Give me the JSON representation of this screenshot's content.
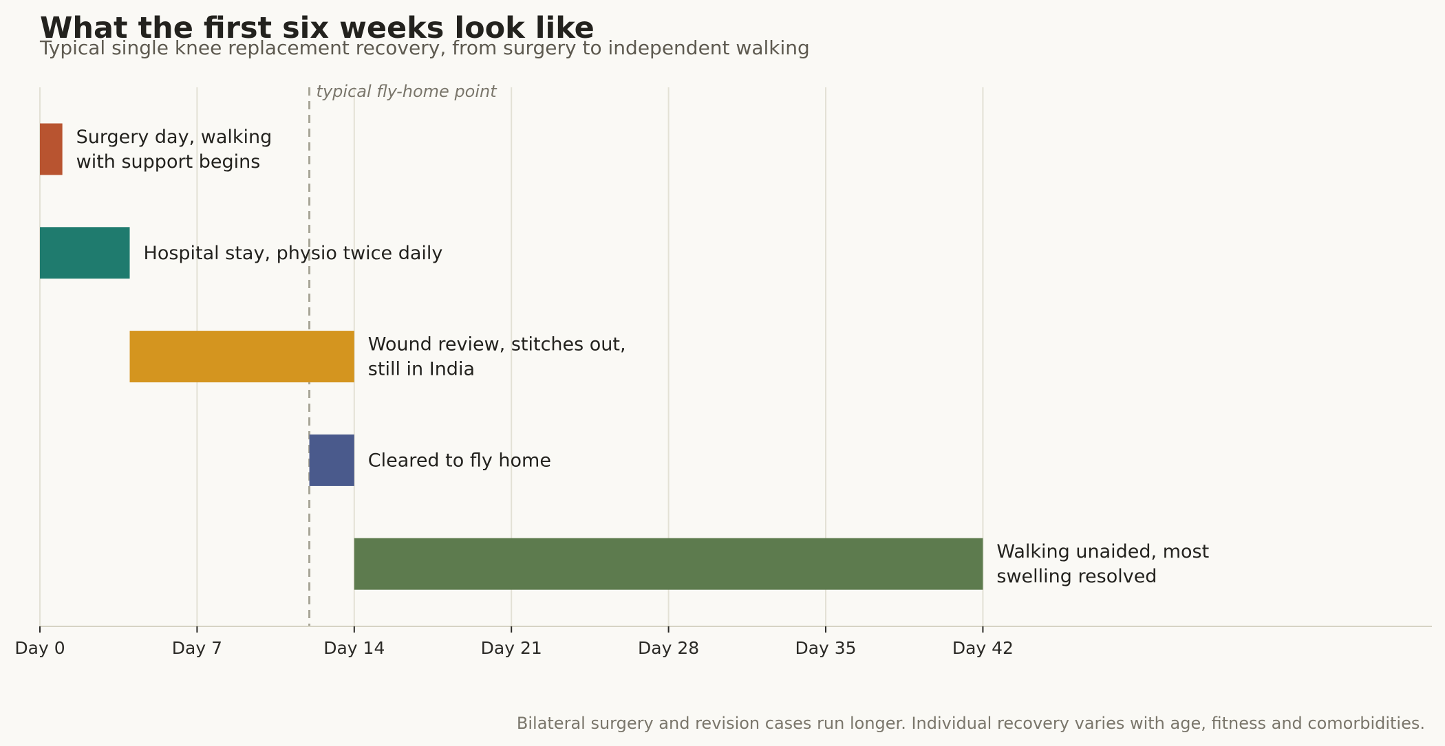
{
  "title": "What the first six weeks look like",
  "subtitle": "Typical single knee replacement recovery, from surgery to independent walking",
  "footnote": "Bilateral surgery and revision cases run longer. Individual recovery varies with age, fitness and comorbidities.",
  "chart_data": {
    "type": "bar",
    "orientation": "horizontal-timeline",
    "xlim": [
      0,
      62
    ],
    "x_ticks": [
      {
        "value": 0,
        "label": "Day 0"
      },
      {
        "value": 7,
        "label": "Day 7"
      },
      {
        "value": 14,
        "label": "Day 14"
      },
      {
        "value": 21,
        "label": "Day 21"
      },
      {
        "value": 28,
        "label": "Day 28"
      },
      {
        "value": 35,
        "label": "Day 35"
      },
      {
        "value": 42,
        "label": "Day 42"
      }
    ],
    "grid": "vertical",
    "phases": [
      {
        "label_lines": [
          "Surgery day, walking",
          "with support begins"
        ],
        "start": 0,
        "end": 1,
        "color": "#b85430"
      },
      {
        "label_lines": [
          "Hospital stay, physio twice daily"
        ],
        "start": 0,
        "end": 4,
        "color": "#1f7b6e"
      },
      {
        "label_lines": [
          "Wound review, stitches out,",
          "still in India"
        ],
        "start": 4,
        "end": 14,
        "color": "#d4951f"
      },
      {
        "label_lines": [
          "Cleared to fly home"
        ],
        "start": 12,
        "end": 14,
        "color": "#4a5a8c"
      },
      {
        "label_lines": [
          "Walking unaided, most",
          "swelling resolved"
        ],
        "start": 14,
        "end": 42,
        "color": "#5d7b4e"
      }
    ],
    "reference_line": {
      "value": 12,
      "label": "typical fly-home point"
    }
  }
}
